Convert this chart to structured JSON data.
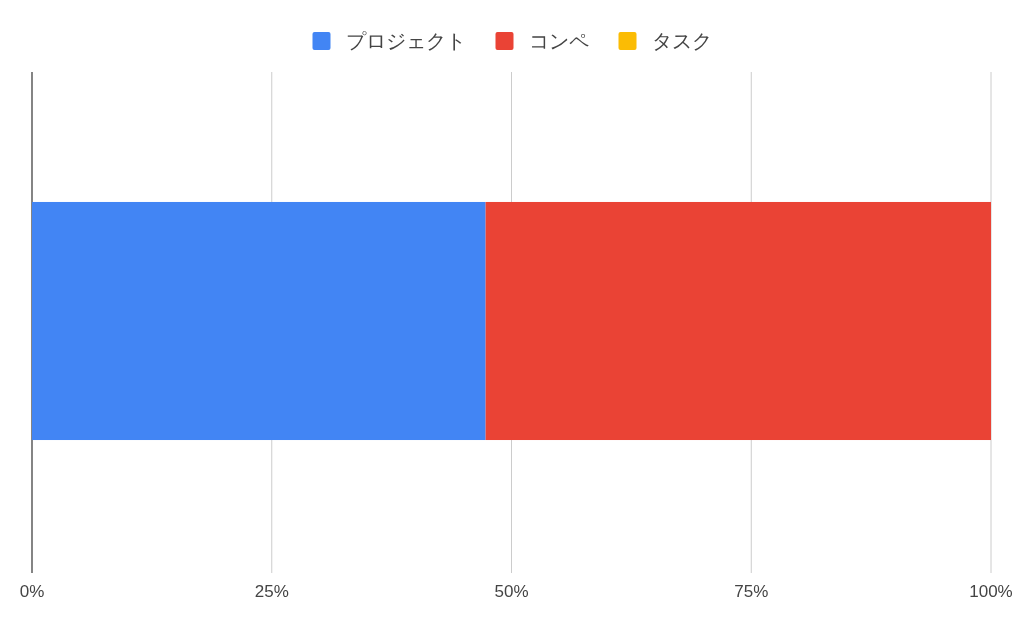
{
  "chart_data": {
    "type": "bar",
    "orientation": "horizontal",
    "stacked": true,
    "categories": [
      null
    ],
    "series": [
      {
        "name": "プロジェクト",
        "color": "#4285f4",
        "values": [
          47.3
        ]
      },
      {
        "name": "コンペ",
        "color": "#ea4335",
        "values": [
          52.7
        ]
      },
      {
        "name": "タスク",
        "color": "#fbbc04",
        "values": [
          0
        ]
      }
    ],
    "xlim": [
      0,
      100
    ],
    "xticks": [
      {
        "value": 0,
        "label": "0%"
      },
      {
        "value": 25,
        "label": "25%"
      },
      {
        "value": 50,
        "label": "50%"
      },
      {
        "value": 75,
        "label": "75%"
      },
      {
        "value": 100,
        "label": "100%"
      }
    ],
    "grid": "x",
    "legend": "top"
  }
}
